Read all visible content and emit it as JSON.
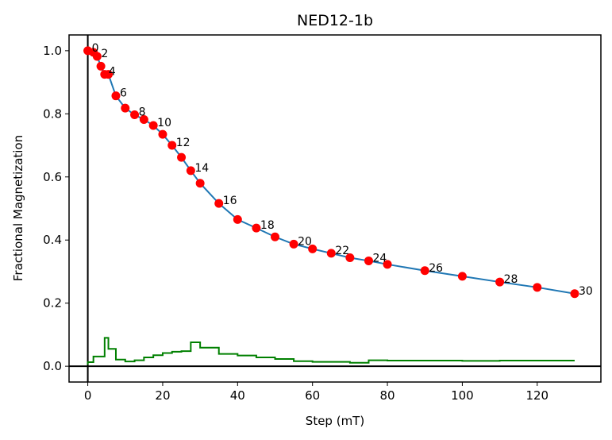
{
  "chart_data": {
    "type": "line",
    "title": "NED12-1b",
    "xlabel": "Step (mT)",
    "ylabel": "Fractional Magnetization",
    "xlim": [
      -5,
      137
    ],
    "ylim": [
      -0.05,
      1.05
    ],
    "xticks": [
      0,
      20,
      40,
      60,
      80,
      100,
      120
    ],
    "yticks": [
      0.0,
      0.2,
      0.4,
      0.6,
      0.8,
      1.0
    ],
    "xtick_labels": [
      "0",
      "20",
      "40",
      "60",
      "80",
      "100",
      "120"
    ],
    "ytick_labels": [
      "0.0",
      "0.2",
      "0.4",
      "0.6",
      "0.8",
      "1.0"
    ],
    "colors": {
      "curve": "#1f77b4",
      "points": "#ff0000",
      "step": "#008000",
      "axes": "#000000"
    },
    "series": [
      {
        "role": "demagnetization-curve",
        "x": [
          0,
          1.5,
          2.5,
          3.5,
          4.5,
          5.5,
          7.5,
          10,
          12.5,
          15,
          17.5,
          20,
          22.5,
          25,
          27.5,
          30,
          35,
          40,
          45,
          50,
          55,
          60,
          65,
          70,
          75,
          80,
          90,
          100,
          110,
          120,
          130
        ],
        "y": [
          1.0,
          0.995,
          0.982,
          0.951,
          0.925,
          0.925,
          0.857,
          0.818,
          0.797,
          0.782,
          0.763,
          0.735,
          0.7,
          0.662,
          0.62,
          0.58,
          0.516,
          0.465,
          0.438,
          0.41,
          0.387,
          0.372,
          0.358,
          0.344,
          0.334,
          0.323,
          0.303,
          0.285,
          0.267,
          0.25,
          0.23
        ]
      },
      {
        "role": "step-difference",
        "x": [
          0,
          1.5,
          2.5,
          3.5,
          4.5,
          5.5,
          7.5,
          10,
          12.5,
          15,
          17.5,
          20,
          22.5,
          25,
          27.5,
          30,
          35,
          40,
          45,
          50,
          55,
          60,
          65,
          70,
          75,
          80,
          90,
          100,
          110,
          120,
          130
        ],
        "y": [
          0.005,
          0.013,
          0.031,
          0.031,
          0.031,
          0.09,
          0.055,
          0.021,
          0.015,
          0.019,
          0.028,
          0.035,
          0.042,
          0.046,
          0.048,
          0.076,
          0.059,
          0.039,
          0.034,
          0.028,
          0.023,
          0.016,
          0.014,
          0.014,
          0.011,
          0.019,
          0.018,
          0.018,
          0.017,
          0.018,
          0.018
        ]
      }
    ],
    "point_labels": [
      "0",
      "2",
      "4",
      "6",
      "8",
      "10",
      "12",
      "14",
      "16",
      "18",
      "20",
      "22",
      "24",
      "26",
      "28",
      "30"
    ]
  }
}
